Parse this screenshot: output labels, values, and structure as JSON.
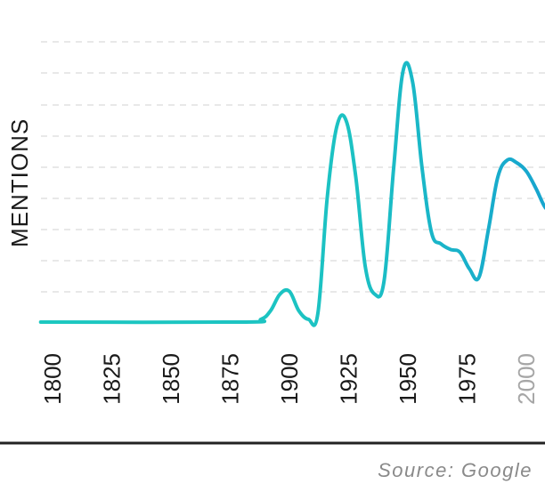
{
  "chart_data": {
    "type": "line",
    "ylabel": "MENTIONS",
    "x_ticks": [
      "1800",
      "1825",
      "1850",
      "1875",
      "1900",
      "1925",
      "1950",
      "1975",
      "2000"
    ],
    "xlim": [
      1800,
      2011
    ],
    "ylim": [
      0,
      100
    ],
    "grid": true,
    "series": [
      {
        "color_start": "#1cc8c0",
        "color_end": "#17a4cf",
        "x": [
          1795,
          1880,
          1888,
          1892,
          1896,
          1900,
          1904,
          1908,
          1912,
          1916,
          1920,
          1924,
          1928,
          1932,
          1936,
          1940,
          1944,
          1948,
          1952,
          1956,
          1960,
          1964,
          1968,
          1972,
          1976,
          1980,
          1984,
          1988,
          1992,
          1996,
          2000,
          2004,
          2008,
          2011
        ],
        "y": [
          0,
          0,
          1,
          4,
          10,
          11,
          4,
          1,
          3,
          45,
          70,
          72,
          52,
          20,
          10,
          15,
          55,
          90,
          86,
          55,
          32,
          28,
          26,
          25,
          19,
          16,
          33,
          52,
          58,
          57,
          54,
          48,
          41,
          40
        ]
      }
    ]
  },
  "source": "Source: Google"
}
